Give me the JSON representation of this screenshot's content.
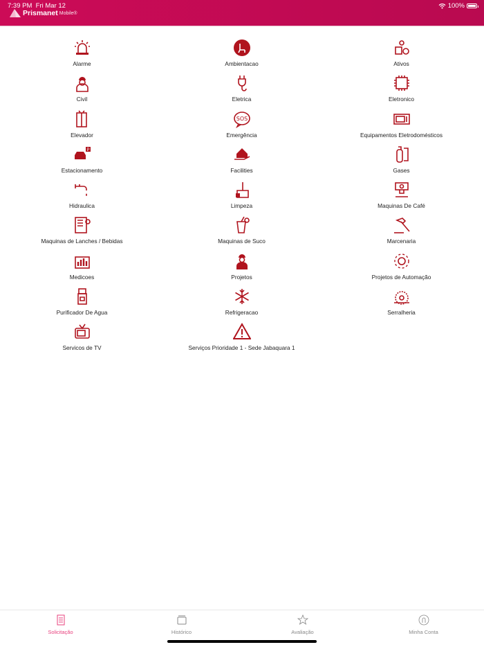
{
  "status_bar": {
    "time": "7:39 PM",
    "date": "Fri Mar 12",
    "battery": "100%",
    "battery_level": 1.0
  },
  "header": {
    "brand": "Prismanet",
    "brand_suffix": "Mobile®"
  },
  "colors": {
    "header": "#c90b55",
    "icon": "#b0141e",
    "active_tab": "#e8417e"
  },
  "categories": [
    {
      "label": "Alarme",
      "icon": "alarm-icon"
    },
    {
      "label": "Ambientacao",
      "icon": "chair-icon"
    },
    {
      "label": "Ativos",
      "icon": "assets-icon"
    },
    {
      "label": "Civil",
      "icon": "worker-icon"
    },
    {
      "label": "Eletrica",
      "icon": "plug-icon"
    },
    {
      "label": "Eletronico",
      "icon": "chip-icon"
    },
    {
      "label": "Elevador",
      "icon": "elevator-icon"
    },
    {
      "label": "Emergência",
      "icon": "sos-icon"
    },
    {
      "label": "Equipamentos Eletrodomésticos",
      "icon": "microwave-icon"
    },
    {
      "label": "Estacionamento",
      "icon": "parking-icon"
    },
    {
      "label": "Facilities",
      "icon": "house-hand-icon"
    },
    {
      "label": "Gases",
      "icon": "gas-cylinder-icon"
    },
    {
      "label": "Hidraulica",
      "icon": "faucet-icon"
    },
    {
      "label": "Limpeza",
      "icon": "cleaning-icon"
    },
    {
      "label": "Maquinas De Café",
      "icon": "coffee-machine-icon"
    },
    {
      "label": "Maquinas de Lanches / Bebidas",
      "icon": "vending-machine-icon"
    },
    {
      "label": "Maquinas de Suco",
      "icon": "juice-icon"
    },
    {
      "label": "Marcenaria",
      "icon": "hammer-icon"
    },
    {
      "label": "Medicoes",
      "icon": "meter-icon"
    },
    {
      "label": "Projetos",
      "icon": "engineer-icon"
    },
    {
      "label": "Projetos de Automação",
      "icon": "automation-gear-icon"
    },
    {
      "label": "Purificador De Agua",
      "icon": "water-purifier-icon"
    },
    {
      "label": "Refrigeracao",
      "icon": "snowflake-icon"
    },
    {
      "label": "Serralheria",
      "icon": "saw-icon"
    },
    {
      "label": "Servicos de TV",
      "icon": "tv-icon"
    },
    {
      "label": "Serviços Prioridade 1 - Sede Jabaquara 1",
      "icon": "warning-icon"
    }
  ],
  "tabs": [
    {
      "label": "Solicitação",
      "icon": "document-icon",
      "active": true
    },
    {
      "label": "Histórico",
      "icon": "folder-icon",
      "active": false
    },
    {
      "label": "Avaliação",
      "icon": "star-icon",
      "active": false
    },
    {
      "label": "Minha Conta",
      "icon": "user-icon",
      "active": false
    }
  ]
}
